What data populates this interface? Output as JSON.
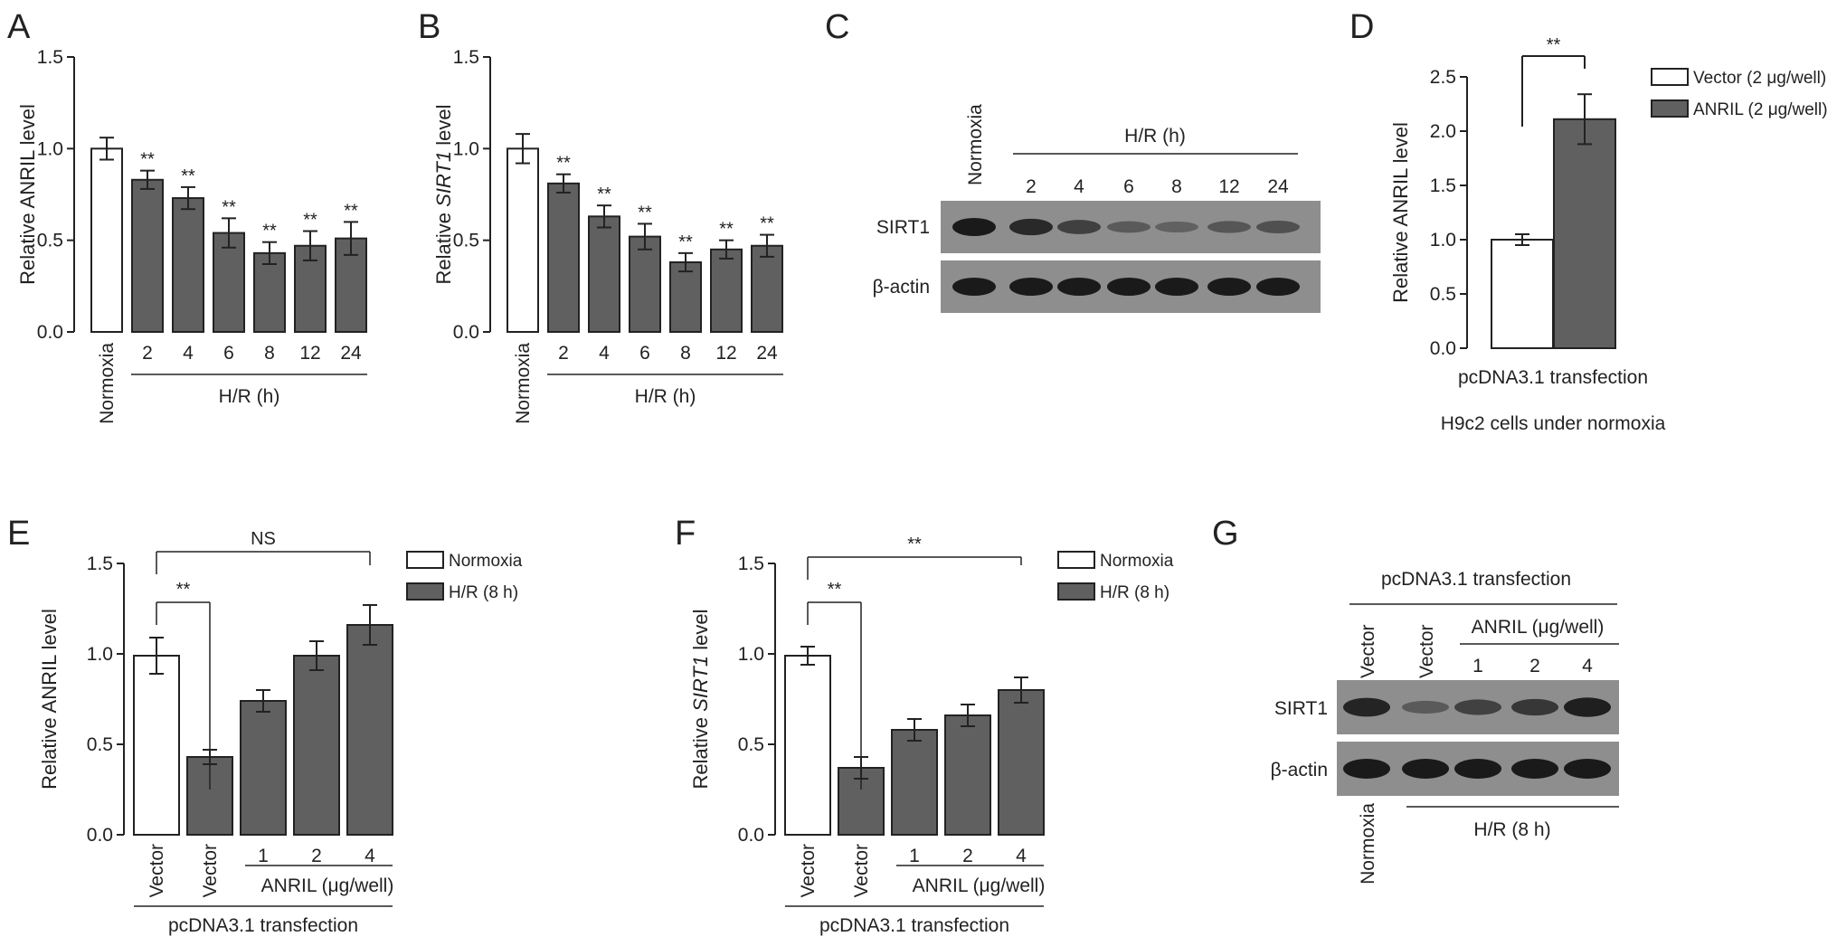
{
  "colors": {
    "white_bar": "#ffffff",
    "gray_bar": "#606060",
    "axis": "#222222",
    "band": "#1a1a1a",
    "blot_bg": "#8e8e8e"
  },
  "chart_data": [
    {
      "panel": "A",
      "type": "bar",
      "ylabel": "Relative ANRIL level",
      "ylabel_italic_word": "",
      "ylim": [
        0,
        1.5
      ],
      "yticks": [
        "0.0",
        "0.5",
        "1.0",
        "1.5"
      ],
      "categories": [
        "Normoxia",
        "2",
        "4",
        "6",
        "8",
        "12",
        "24"
      ],
      "values": [
        1.0,
        0.83,
        0.73,
        0.54,
        0.43,
        0.47,
        0.51
      ],
      "errors": [
        0.06,
        0.05,
        0.06,
        0.08,
        0.06,
        0.08,
        0.09
      ],
      "fills": [
        "white",
        "gray",
        "gray",
        "gray",
        "gray",
        "gray",
        "gray"
      ],
      "significance": [
        "",
        "**",
        "**",
        "**",
        "**",
        "**",
        "**"
      ],
      "group_label": "H/R (h)"
    },
    {
      "panel": "B",
      "type": "bar",
      "ylabel": "Relative SIRT1 level",
      "ylabel_italic_word": "SIRT1",
      "ylim": [
        0,
        1.5
      ],
      "yticks": [
        "0.0",
        "0.5",
        "1.0",
        "1.5"
      ],
      "categories": [
        "Normoxia",
        "2",
        "4",
        "6",
        "8",
        "12",
        "24"
      ],
      "values": [
        1.0,
        0.81,
        0.63,
        0.52,
        0.38,
        0.45,
        0.47
      ],
      "errors": [
        0.08,
        0.05,
        0.06,
        0.07,
        0.05,
        0.05,
        0.06
      ],
      "fills": [
        "white",
        "gray",
        "gray",
        "gray",
        "gray",
        "gray",
        "gray"
      ],
      "significance": [
        "",
        "**",
        "**",
        "**",
        "**",
        "**",
        "**"
      ],
      "group_label": "H/R (h)"
    },
    {
      "panel": "D",
      "type": "bar",
      "ylabel": "Relative ANRIL level",
      "ylabel_italic_word": "",
      "ylim": [
        0,
        2.5
      ],
      "yticks": [
        "0.0",
        "0.5",
        "1.0",
        "1.5",
        "2.0",
        "2.5"
      ],
      "categories": [
        "Vector (2 μg/well)",
        "ANRIL (2 μg/well)"
      ],
      "values": [
        1.0,
        2.11
      ],
      "errors": [
        0.05,
        0.23
      ],
      "fills": [
        "white",
        "gray"
      ],
      "legend": [
        {
          "label": "Vector (2 μg/well)",
          "fill": "white"
        },
        {
          "label": "ANRIL (2 μg/well)",
          "fill": "gray"
        }
      ],
      "bracket": {
        "from": 0,
        "to": 1,
        "label": "**"
      },
      "xlabel": "pcDNA3.1 transfection",
      "caption": "H9c2 cells under normoxia"
    },
    {
      "panel": "E",
      "type": "bar",
      "ylabel": "Relative ANRIL level",
      "ylabel_italic_word": "",
      "ylim": [
        0,
        1.5
      ],
      "yticks": [
        "0.0",
        "0.5",
        "1.0",
        "1.5"
      ],
      "categories": [
        "Vector",
        "Vector",
        "1",
        "2",
        "4"
      ],
      "values": [
        0.99,
        0.43,
        0.74,
        0.99,
        1.16
      ],
      "errors": [
        0.1,
        0.04,
        0.06,
        0.08,
        0.11
      ],
      "fills": [
        "white",
        "gray",
        "gray",
        "gray",
        "gray"
      ],
      "legend": [
        {
          "label": "Normoxia",
          "fill": "white"
        },
        {
          "label": "H/R (8 h)",
          "fill": "gray"
        }
      ],
      "brackets": [
        {
          "from": 0,
          "to": 1,
          "label": "**"
        },
        {
          "from": 0,
          "to": 4,
          "label": "NS"
        }
      ],
      "sub_group_label": "ANRIL (μg/well)",
      "xlabel": "pcDNA3.1 transfection"
    },
    {
      "panel": "F",
      "type": "bar",
      "ylabel": "Relative SIRT1 level",
      "ylabel_italic_word": "SIRT1",
      "ylim": [
        0,
        1.5
      ],
      "yticks": [
        "0.0",
        "0.5",
        "1.0",
        "1.5"
      ],
      "categories": [
        "Vector",
        "Vector",
        "1",
        "2",
        "4"
      ],
      "values": [
        0.99,
        0.37,
        0.58,
        0.66,
        0.8
      ],
      "errors": [
        0.05,
        0.06,
        0.06,
        0.06,
        0.07
      ],
      "fills": [
        "white",
        "gray",
        "gray",
        "gray",
        "gray"
      ],
      "legend": [
        {
          "label": "Normoxia",
          "fill": "white"
        },
        {
          "label": "H/R (8 h)",
          "fill": "gray"
        }
      ],
      "brackets": [
        {
          "from": 0,
          "to": 1,
          "label": "**"
        },
        {
          "from": 0,
          "to": 4,
          "label": "**"
        }
      ],
      "sub_group_label": "ANRIL (μg/well)",
      "xlabel": "pcDNA3.1 transfection"
    }
  ],
  "blots": [
    {
      "panel": "C",
      "lanes": [
        "Normoxia",
        "2",
        "4",
        "6",
        "8",
        "12",
        "24"
      ],
      "group_label": "H/R (h)",
      "rows": [
        {
          "label": "SIRT1",
          "intensity": [
            1.0,
            0.85,
            0.62,
            0.35,
            0.28,
            0.38,
            0.45
          ]
        },
        {
          "label": "β-actin",
          "intensity": [
            1.0,
            1.0,
            1.0,
            1.0,
            1.0,
            1.0,
            1.0
          ]
        }
      ]
    },
    {
      "panel": "G",
      "top_label": "pcDNA3.1 transfection",
      "lanes": [
        "Vector",
        "Vector",
        "1",
        "2",
        "4"
      ],
      "sub_group_label": "ANRIL (μg/well)",
      "bottom_labels": {
        "normoxia": "Normoxia",
        "hr": "H/R (8 h)"
      },
      "rows": [
        {
          "label": "SIRT1",
          "intensity": [
            0.9,
            0.35,
            0.6,
            0.7,
            0.95
          ]
        },
        {
          "label": "β-actin",
          "intensity": [
            1.0,
            1.0,
            1.0,
            1.0,
            1.0
          ]
        }
      ]
    }
  ],
  "panel_letters": [
    "A",
    "B",
    "C",
    "D",
    "E",
    "F",
    "G"
  ]
}
